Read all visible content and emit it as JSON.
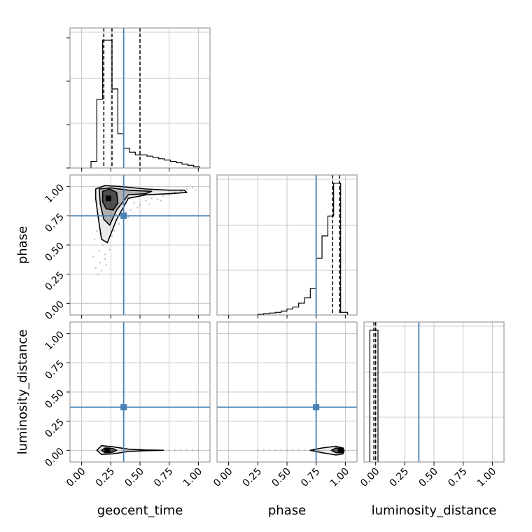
{
  "chart_data": {
    "type": "corner",
    "parameters": [
      "geocent_time",
      "phase",
      "luminosity_distance"
    ],
    "truths": {
      "geocent_time": 0.36,
      "phase": 0.75,
      "luminosity_distance": 0.37
    },
    "ticks": [
      "0.00",
      "0.25",
      "0.50",
      "0.75",
      "1.00"
    ],
    "ranges": {
      "geocent_time": [
        -0.1,
        1.1
      ],
      "phase": [
        -0.1,
        1.1
      ],
      "luminosity_distance": [
        -0.1,
        1.1
      ]
    },
    "grid": true,
    "colors": {
      "truth": "#4682b4",
      "hist": "#000000",
      "points": "#999999"
    },
    "marginals": {
      "geocent_time": {
        "bins": [
          0.08,
          0.13,
          0.18,
          0.21,
          0.26,
          0.31,
          0.36,
          0.41,
          0.46,
          0.51,
          0.56,
          0.61,
          0.66,
          0.71,
          0.76,
          0.81,
          0.86,
          0.91,
          0.96,
          1.01
        ],
        "counts": [
          0.05,
          0.52,
          0.97,
          0.97,
          0.6,
          0.26,
          0.15,
          0.12,
          0.1,
          0.1,
          0.09,
          0.08,
          0.07,
          0.06,
          0.05,
          0.04,
          0.03,
          0.02,
          0.01
        ],
        "quantiles": [
          0.19,
          0.26,
          0.5
        ]
      },
      "phase": {
        "bins": [
          0.25,
          0.3,
          0.35,
          0.4,
          0.45,
          0.5,
          0.55,
          0.6,
          0.65,
          0.7,
          0.75,
          0.8,
          0.85,
          0.9,
          0.96,
          1.02
        ],
        "counts": [
          0.005,
          0.01,
          0.015,
          0.02,
          0.03,
          0.045,
          0.06,
          0.09,
          0.13,
          0.2,
          0.43,
          0.6,
          0.75,
          1.0,
          0.02
        ],
        "quantiles": [
          0.75,
          0.89,
          0.95
        ]
      },
      "luminosity_distance": {
        "bins": [
          -0.05,
          0.02
        ],
        "counts": [
          1.0
        ],
        "quantiles": [
          -0.015,
          0.0
        ]
      }
    },
    "contours": {
      "phase_vs_geocent_time": [
        {
          "level": "outer",
          "points": [
            [
              0.12,
              0.98
            ],
            [
              0.2,
              1.01
            ],
            [
              0.35,
              1.0
            ],
            [
              0.55,
              0.98
            ],
            [
              0.75,
              0.97
            ],
            [
              0.88,
              0.97
            ],
            [
              0.9,
              0.95
            ],
            [
              0.75,
              0.94
            ],
            [
              0.55,
              0.93
            ],
            [
              0.4,
              0.9
            ],
            [
              0.3,
              0.72
            ],
            [
              0.22,
              0.52
            ],
            [
              0.17,
              0.55
            ],
            [
              0.14,
              0.75
            ],
            [
              0.12,
              0.9
            ]
          ]
        },
        {
          "level": "middle",
          "points": [
            [
              0.15,
              0.98
            ],
            [
              0.25,
              0.99
            ],
            [
              0.4,
              0.97
            ],
            [
              0.6,
              0.96
            ],
            [
              0.55,
              0.94
            ],
            [
              0.4,
              0.93
            ],
            [
              0.3,
              0.8
            ],
            [
              0.24,
              0.67
            ],
            [
              0.19,
              0.72
            ],
            [
              0.16,
              0.85
            ]
          ]
        },
        {
          "level": "inner",
          "points": [
            [
              0.18,
              0.96
            ],
            [
              0.24,
              0.98
            ],
            [
              0.3,
              0.95
            ],
            [
              0.31,
              0.86
            ],
            [
              0.27,
              0.8
            ],
            [
              0.21,
              0.81
            ],
            [
              0.18,
              0.87
            ]
          ]
        }
      ],
      "luminosity_distance_vs_geocent_time": [
        {
          "level": "outer",
          "points": [
            [
              0.13,
              0.0
            ],
            [
              0.17,
              0.04
            ],
            [
              0.27,
              0.03
            ],
            [
              0.4,
              0.01
            ],
            [
              0.55,
              0.003
            ],
            [
              0.7,
              0.0
            ],
            [
              0.55,
              -0.003
            ],
            [
              0.4,
              -0.01
            ],
            [
              0.27,
              -0.03
            ],
            [
              0.17,
              -0.035
            ]
          ]
        },
        {
          "level": "inner",
          "points": [
            [
              0.17,
              0.0
            ],
            [
              0.2,
              0.02
            ],
            [
              0.27,
              0.015
            ],
            [
              0.3,
              0.0
            ],
            [
              0.27,
              -0.015
            ],
            [
              0.2,
              -0.02
            ]
          ]
        }
      ],
      "luminosity_distance_vs_phase": [
        {
          "level": "outer",
          "points": [
            [
              0.7,
              0.0
            ],
            [
              0.8,
              0.02
            ],
            [
              0.92,
              0.035
            ],
            [
              0.98,
              0.02
            ],
            [
              0.99,
              0.0
            ],
            [
              0.98,
              -0.03
            ],
            [
              0.92,
              -0.04
            ],
            [
              0.8,
              -0.02
            ]
          ]
        },
        {
          "level": "inner",
          "points": [
            [
              0.88,
              0.0
            ],
            [
              0.92,
              0.02
            ],
            [
              0.97,
              0.015
            ],
            [
              0.98,
              0.0
            ],
            [
              0.97,
              -0.02
            ],
            [
              0.92,
              -0.02
            ]
          ]
        }
      ]
    },
    "modes": {
      "phase_vs_geocent_time": [
        0.23,
        0.9
      ],
      "luminosity_distance_vs_geocent_time": [
        0.22,
        0.0
      ],
      "luminosity_distance_vs_phase": [
        0.96,
        0.0
      ]
    },
    "scatter": {
      "phase_vs_geocent_time": [
        [
          0.1,
          0.4
        ],
        [
          0.12,
          0.3
        ],
        [
          0.14,
          0.25
        ],
        [
          0.15,
          0.45
        ],
        [
          0.16,
          0.35
        ],
        [
          0.18,
          0.5
        ],
        [
          0.2,
          0.42
        ],
        [
          0.21,
          0.33
        ],
        [
          0.24,
          0.46
        ],
        [
          0.26,
          0.58
        ],
        [
          0.28,
          0.62
        ],
        [
          0.32,
          0.68
        ],
        [
          0.36,
          0.7
        ],
        [
          0.38,
          0.78
        ],
        [
          0.42,
          0.8
        ],
        [
          0.45,
          0.86
        ],
        [
          0.5,
          0.84
        ],
        [
          0.55,
          0.88
        ],
        [
          0.6,
          0.9
        ],
        [
          0.65,
          0.89
        ],
        [
          0.7,
          0.92
        ],
        [
          0.75,
          0.93
        ],
        [
          0.8,
          0.95
        ],
        [
          0.85,
          0.96
        ],
        [
          0.9,
          0.98
        ],
        [
          0.95,
          0.99
        ],
        [
          0.98,
          0.97
        ],
        [
          0.4,
          0.74
        ],
        [
          0.48,
          0.82
        ],
        [
          0.58,
          0.85
        ],
        [
          0.68,
          0.88
        ],
        [
          0.34,
          0.76
        ],
        [
          0.11,
          0.55
        ],
        [
          0.13,
          0.62
        ],
        [
          0.2,
          0.38
        ],
        [
          0.17,
          0.28
        ]
      ],
      "luminosity_distance_vs_geocent_time": [
        [
          0.7,
          0.0
        ],
        [
          0.75,
          0.0
        ],
        [
          0.8,
          0.0
        ],
        [
          0.85,
          0.0
        ],
        [
          0.9,
          0.0
        ],
        [
          0.95,
          0.0
        ],
        [
          1.0,
          0.0
        ],
        [
          0.6,
          0.0
        ],
        [
          0.65,
          0.002
        ]
      ],
      "luminosity_distance_vs_phase": [
        [
          0.25,
          0.0
        ],
        [
          0.3,
          0.0
        ],
        [
          0.35,
          0.0
        ],
        [
          0.4,
          0.0
        ],
        [
          0.45,
          0.0
        ],
        [
          0.5,
          0.0
        ],
        [
          0.55,
          0.0
        ],
        [
          0.6,
          0.0
        ],
        [
          0.65,
          0.0
        ],
        [
          0.7,
          0.0
        ]
      ]
    }
  }
}
